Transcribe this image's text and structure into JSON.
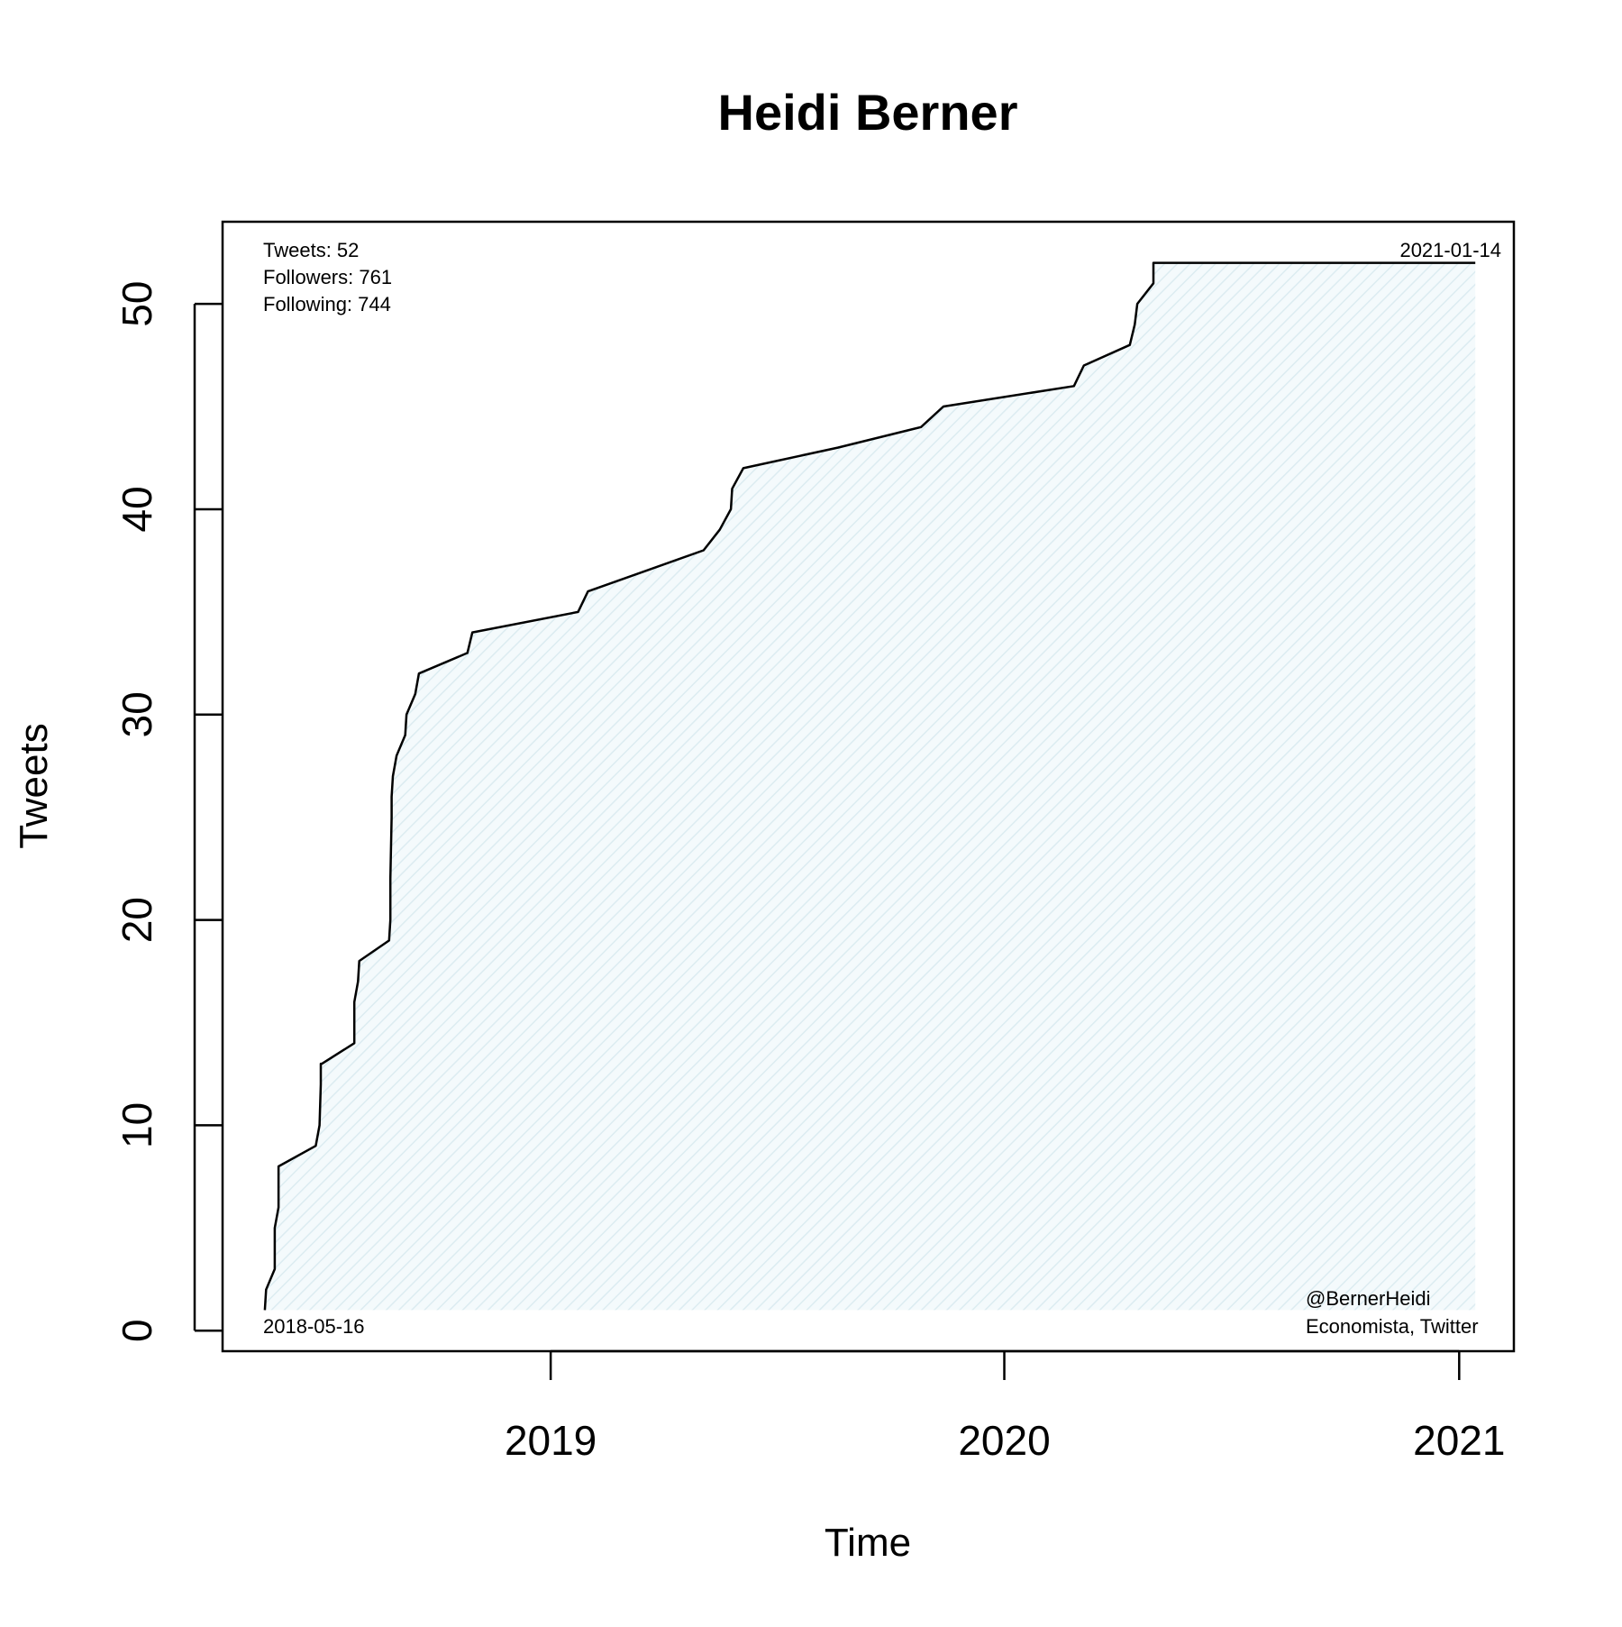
{
  "chart_data": {
    "type": "area",
    "title": "Heidi Berner",
    "xlabel": "Time",
    "ylabel": "Tweets",
    "x_axis_type": "date",
    "xlim": [
      "2018-04-12",
      "2021-02-14"
    ],
    "ylim": [
      -1,
      54
    ],
    "x_ticks": [
      "2019-01-01",
      "2020-01-01",
      "2021-01-01"
    ],
    "x_tick_labels": [
      "2019",
      "2020",
      "2021"
    ],
    "y_ticks": [
      0,
      10,
      20,
      30,
      40,
      50
    ],
    "y_tick_labels": [
      "0",
      "10",
      "20",
      "30",
      "40",
      "50"
    ],
    "grid": false,
    "line_color": "#000000",
    "fill_color": "#e9f4f7",
    "fill_baseline": 1,
    "series": [
      {
        "x": [
          "2018-05-16",
          "2018-05-17",
          "2018-05-24",
          "2018-05-24",
          "2018-05-27",
          "2018-05-27",
          "2018-05-27",
          "2018-06-26",
          "2018-06-29",
          "2018-06-30",
          "2018-06-30",
          "2018-07-01",
          "2018-07-27",
          "2018-07-27",
          "2018-07-30",
          "2018-07-31",
          "2018-08-24",
          "2018-08-25",
          "2018-08-25",
          "2018-08-26",
          "2018-08-26",
          "2018-08-27",
          "2018-08-30",
          "2018-09-06",
          "2018-09-07",
          "2018-09-14",
          "2018-09-17",
          "2018-10-26",
          "2018-10-30",
          "2019-01-23",
          "2019-01-31",
          "2019-05-04",
          "2019-05-17",
          "2019-05-26",
          "2019-05-27",
          "2019-06-05",
          "2019-08-20",
          "2019-10-26",
          "2019-11-13",
          "2020-02-26",
          "2020-03-05",
          "2020-04-11",
          "2020-04-15",
          "2020-04-17",
          "2020-04-30",
          "2020-04-30",
          "2020-08-18",
          "2020-08-18",
          "2021-01-14"
        ],
        "values": [
          1,
          2,
          3,
          5,
          6,
          7,
          8,
          9,
          10,
          12,
          13,
          13,
          14,
          16,
          17,
          18,
          19,
          20,
          22,
          25,
          26,
          27,
          28,
          29,
          30,
          31,
          32,
          33,
          34,
          35,
          36,
          38,
          39,
          40,
          41,
          42,
          43,
          44,
          45,
          46,
          47,
          48,
          49,
          50,
          51,
          52,
          52,
          52,
          52
        ]
      }
    ],
    "annotations": {
      "stats": [
        "Tweets: 52",
        "Followers: 761",
        "Following: 744"
      ],
      "start_date": "2018-05-16",
      "end_date": "2021-01-14",
      "handle": "@BernerHeidi",
      "description": "Economista, Twitter"
    }
  }
}
